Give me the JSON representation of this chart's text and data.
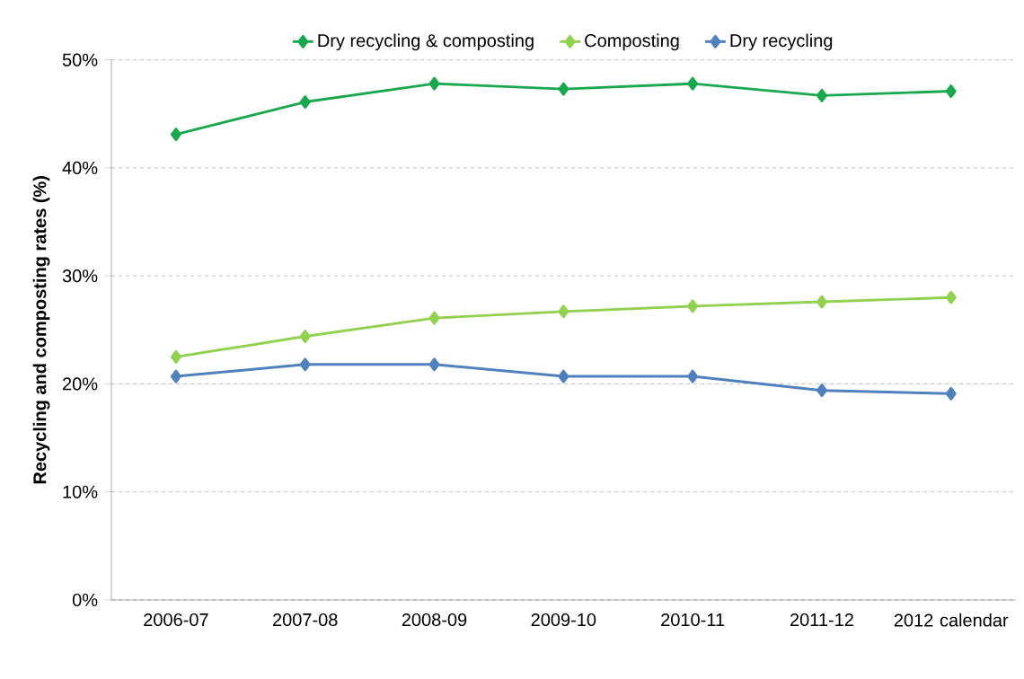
{
  "chart_data": {
    "type": "line",
    "ylabel": "Recycling and composting rates (%)",
    "categories": [
      "2006-07",
      "2007-08",
      "2008-09",
      "2009-10",
      "2010-11",
      "2011-12",
      "2012 calendar"
    ],
    "series": [
      {
        "name": "Dry recycling & composting",
        "color": "#1aa84f",
        "values": [
          43.1,
          46.1,
          47.8,
          47.3,
          47.8,
          46.7,
          47.1
        ]
      },
      {
        "name": "Composting",
        "color": "#92d050",
        "values": [
          22.5,
          24.4,
          26.1,
          26.7,
          27.2,
          27.6,
          28.0
        ]
      },
      {
        "name": "Dry recycling",
        "color": "#4f81bd",
        "values": [
          20.7,
          21.8,
          21.8,
          20.7,
          20.7,
          19.4,
          19.1
        ]
      }
    ],
    "ylim": [
      0,
      50
    ],
    "yticks": [
      {
        "value": 0,
        "label": "0%"
      },
      {
        "value": 10,
        "label": "10%"
      },
      {
        "value": 20,
        "label": "20%"
      },
      {
        "value": 30,
        "label": "30%"
      },
      {
        "value": 40,
        "label": "40%"
      },
      {
        "value": 50,
        "label": "50%"
      }
    ],
    "grid": "y",
    "legend": "top",
    "marker": "diamond",
    "line_style": "solid"
  }
}
